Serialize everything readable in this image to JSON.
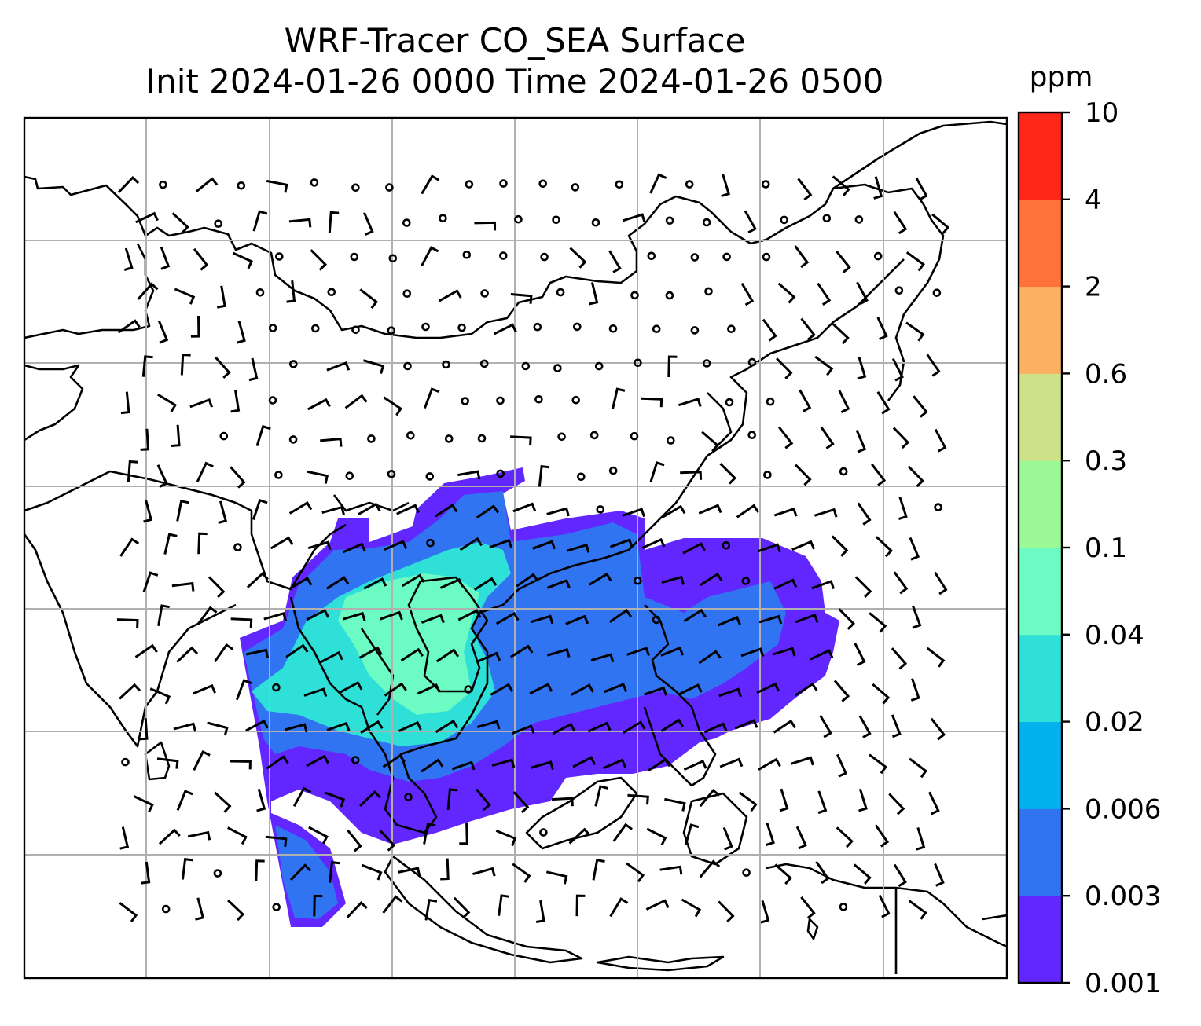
{
  "figure": {
    "title_line1": "WRF-Tracer CO_SEA Surface",
    "title_line2": "Init 2024-01-26 0000 Time 2024-01-26 0500"
  },
  "colorbar": {
    "unit": "ppm",
    "levels": [
      "0.001",
      "0.003",
      "0.006",
      "0.02",
      "0.04",
      "0.1",
      "0.3",
      "0.6",
      "2",
      "4",
      "10"
    ],
    "colors": [
      "#6227ff",
      "#3174f2",
      "#02b1ed",
      "#2fe0d8",
      "#6bfbc3",
      "#9bf998",
      "#cee389",
      "#fcb062",
      "#ff7239",
      "#ff2718"
    ]
  },
  "map": {
    "grid": true,
    "region": "East and Southeast Asia",
    "contour_colors": [
      "#6227ff",
      "#3174f2",
      "#2fe0d8",
      "#6bfbc3"
    ],
    "coastline_color": "#000000",
    "wind_barb_color": "#000000"
  }
}
